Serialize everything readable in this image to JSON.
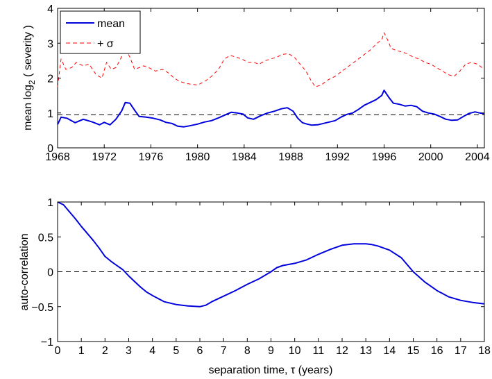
{
  "chart_data": [
    {
      "type": "line",
      "ylabel": "mean log",
      "ylabel_sub": "2",
      "ylabel_rest": " ( severity )",
      "xlim": [
        1968,
        2004.6
      ],
      "ylim": [
        0,
        4
      ],
      "xticks": [
        "1968",
        "1972",
        "1976",
        "1980",
        "1984",
        "1988",
        "1992",
        "1996",
        "2000",
        "2004"
      ],
      "yticks": [
        "0",
        "1",
        "2",
        "3",
        "4"
      ],
      "grid": false,
      "legend_position": "top-left",
      "reference_line": {
        "y": 0.95,
        "style": "dashed",
        "color": "#000000"
      },
      "series": [
        {
          "name": "mean",
          "color": "#0000dd",
          "style": "solid",
          "x": [
            1968.0,
            1968.3,
            1968.8,
            1969.5,
            1970.2,
            1971.0,
            1971.6,
            1972.0,
            1972.5,
            1973.0,
            1973.5,
            1973.8,
            1974.2,
            1974.6,
            1975.0,
            1975.6,
            1976.2,
            1976.8,
            1977.3,
            1977.8,
            1978.3,
            1978.8,
            1979.3,
            1980.0,
            1980.6,
            1981.2,
            1981.8,
            1982.4,
            1982.9,
            1983.4,
            1983.9,
            1984.3,
            1984.8,
            1985.4,
            1986.0,
            1986.6,
            1987.2,
            1987.7,
            1988.2,
            1988.6,
            1989.0,
            1989.4,
            1989.8,
            1990.3,
            1990.8,
            1991.3,
            1991.8,
            1992.3,
            1992.8,
            1993.3,
            1993.8,
            1994.3,
            1994.8,
            1995.3,
            1995.8,
            1996.0,
            1996.4,
            1996.8,
            1997.3,
            1997.8,
            1998.3,
            1998.8,
            1999.3,
            1999.8,
            2000.3,
            2000.8,
            2001.3,
            2001.8,
            2002.3,
            2002.8,
            2003.3,
            2003.8,
            2004.2,
            2004.6
          ],
          "y": [
            0.67,
            0.88,
            0.85,
            0.72,
            0.82,
            0.74,
            0.66,
            0.73,
            0.66,
            0.82,
            1.06,
            1.3,
            1.28,
            1.08,
            0.9,
            0.88,
            0.85,
            0.8,
            0.73,
            0.7,
            0.62,
            0.6,
            0.63,
            0.68,
            0.74,
            0.78,
            0.86,
            0.95,
            1.02,
            1.0,
            0.97,
            0.86,
            0.82,
            0.92,
            1.0,
            1.05,
            1.12,
            1.15,
            1.05,
            0.85,
            0.72,
            0.68,
            0.65,
            0.66,
            0.7,
            0.74,
            0.78,
            0.88,
            0.96,
            1.0,
            1.1,
            1.22,
            1.3,
            1.38,
            1.5,
            1.65,
            1.45,
            1.28,
            1.25,
            1.2,
            1.22,
            1.18,
            1.05,
            1.0,
            0.97,
            0.9,
            0.82,
            0.79,
            0.8,
            0.9,
            0.99,
            1.03,
            1.0,
            0.98
          ]
        },
        {
          "name": "+ σ",
          "color": "#ff0000",
          "style": "dashed",
          "x": [
            1968.0,
            1968.3,
            1968.7,
            1969.2,
            1969.6,
            1970.2,
            1970.7,
            1971.3,
            1971.8,
            1972.2,
            1972.6,
            1973.0,
            1973.4,
            1973.8,
            1974.2,
            1974.6,
            1975.0,
            1975.4,
            1975.8,
            1976.4,
            1977.0,
            1977.5,
            1978.0,
            1978.5,
            1979.0,
            1979.5,
            1980.0,
            1980.6,
            1981.2,
            1981.8,
            1982.3,
            1982.8,
            1983.3,
            1983.8,
            1984.3,
            1984.8,
            1985.3,
            1985.8,
            1986.3,
            1986.8,
            1987.3,
            1987.8,
            1988.3,
            1988.8,
            1989.3,
            1989.7,
            1990.1,
            1990.6,
            1991.2,
            1991.8,
            1992.4,
            1993.0,
            1993.6,
            1994.2,
            1994.8,
            1995.4,
            1995.8,
            1996.0,
            1996.3,
            1996.6,
            1997.0,
            1997.5,
            1998.0,
            1998.5,
            1999.0,
            1999.5,
            2000.0,
            2000.5,
            2001.0,
            2001.5,
            2002.0,
            2002.5,
            2003.0,
            2003.5,
            2004.0,
            2004.6
          ],
          "y": [
            1.75,
            2.55,
            2.25,
            2.3,
            2.45,
            2.35,
            2.4,
            2.1,
            2.0,
            2.45,
            2.25,
            2.3,
            2.55,
            2.85,
            2.6,
            2.25,
            2.3,
            2.35,
            2.3,
            2.2,
            2.25,
            2.15,
            2.0,
            1.9,
            1.85,
            1.82,
            1.8,
            1.9,
            2.05,
            2.25,
            2.55,
            2.65,
            2.6,
            2.55,
            2.45,
            2.45,
            2.4,
            2.5,
            2.55,
            2.6,
            2.68,
            2.7,
            2.6,
            2.4,
            2.2,
            1.95,
            1.75,
            1.8,
            1.95,
            2.05,
            2.2,
            2.35,
            2.5,
            2.65,
            2.8,
            3.0,
            3.1,
            3.3,
            3.1,
            2.85,
            2.8,
            2.75,
            2.7,
            2.6,
            2.55,
            2.45,
            2.4,
            2.3,
            2.2,
            2.1,
            2.05,
            2.2,
            2.4,
            2.45,
            2.4,
            2.25
          ]
        }
      ]
    },
    {
      "type": "line",
      "ylabel": "auto-correlation",
      "xlabel": "separation time, τ (years)",
      "xlim": [
        0,
        18
      ],
      "ylim": [
        -1,
        1
      ],
      "xticks": [
        "0",
        "1",
        "2",
        "3",
        "4",
        "5",
        "6",
        "7",
        "8",
        "9",
        "10",
        "11",
        "12",
        "13",
        "14",
        "15",
        "16",
        "17",
        "18"
      ],
      "yticks": [
        "−1",
        "−0.5",
        "0",
        "0.5",
        "1"
      ],
      "grid": false,
      "reference_line": {
        "y": 0,
        "style": "dashed",
        "color": "#000000"
      },
      "series": [
        {
          "color": "#0000dd",
          "style": "solid",
          "x": [
            0,
            0.25,
            0.5,
            0.75,
            1,
            1.25,
            1.5,
            1.75,
            2,
            2.25,
            2.5,
            2.75,
            3,
            3.25,
            3.5,
            3.75,
            4,
            4.5,
            5,
            5.5,
            6,
            6.25,
            6.5,
            7,
            7.5,
            8,
            8.5,
            9,
            9.25,
            9.5,
            10,
            10.5,
            11,
            11.5,
            12,
            12.5,
            13,
            13.25,
            13.5,
            14,
            14.5,
            15,
            15.5,
            16,
            16.5,
            17,
            17.5,
            18
          ],
          "y": [
            1.0,
            0.96,
            0.86,
            0.76,
            0.65,
            0.55,
            0.45,
            0.34,
            0.22,
            0.15,
            0.09,
            0.03,
            -0.06,
            -0.14,
            -0.22,
            -0.29,
            -0.34,
            -0.43,
            -0.47,
            -0.49,
            -0.5,
            -0.48,
            -0.43,
            -0.35,
            -0.27,
            -0.18,
            -0.1,
            0.0,
            0.06,
            0.09,
            0.12,
            0.17,
            0.25,
            0.32,
            0.38,
            0.4,
            0.4,
            0.39,
            0.37,
            0.31,
            0.2,
            0.0,
            -0.15,
            -0.27,
            -0.36,
            -0.41,
            -0.44,
            -0.46
          ]
        }
      ]
    }
  ]
}
